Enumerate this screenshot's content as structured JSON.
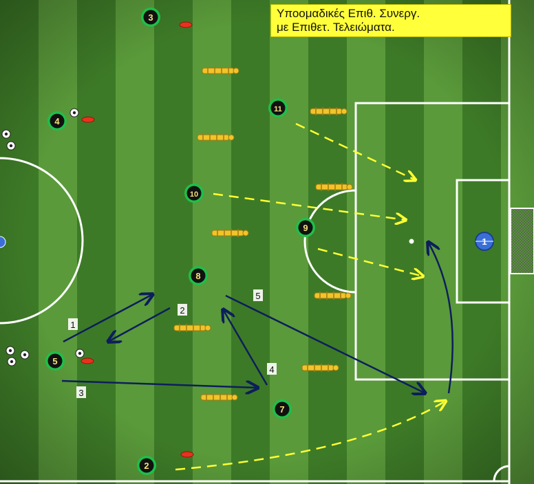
{
  "title": {
    "line1": "Υποομαδικές Επιθ. Συνεργ.",
    "line2": "με Επιθετ. Τελειώματα."
  },
  "players": [
    {
      "id": "player-3",
      "number": "3"
    },
    {
      "id": "player-4",
      "number": "4"
    },
    {
      "id": "player-11",
      "number": "11"
    },
    {
      "id": "player-10",
      "number": "10"
    },
    {
      "id": "player-9",
      "number": "9"
    },
    {
      "id": "player-8",
      "number": "8"
    },
    {
      "id": "player-5",
      "number": "5"
    },
    {
      "id": "player-7",
      "number": "7"
    },
    {
      "id": "player-2",
      "number": "2"
    }
  ],
  "goalkeeper": {
    "number": "1"
  },
  "sequence_labels": [
    "1",
    "2",
    "3",
    "4",
    "5"
  ],
  "colors": {
    "grass_dark": "#3d7a27",
    "grass_light": "#5a9a3a",
    "line": "#ffffff",
    "run_arrow": "#ffff33",
    "pass_arrow": "#0d1e5c",
    "mannequin": "#f2c42a",
    "cone": "#e8321e",
    "player_ring": "#1fbf4a",
    "goalkeeper": "#3a6fd8",
    "title_bg": "#ffff3a"
  }
}
